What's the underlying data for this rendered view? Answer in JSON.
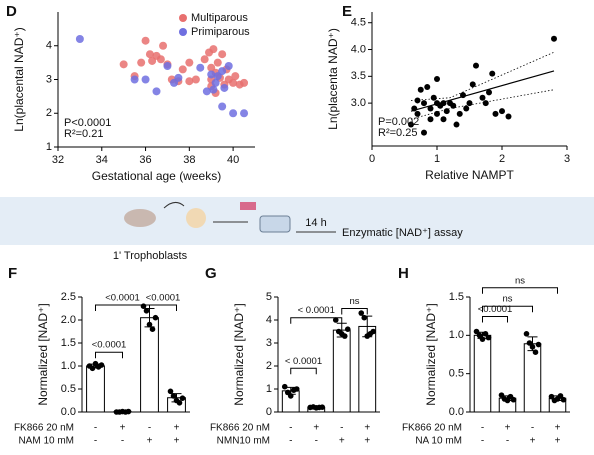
{
  "chart_data": [
    {
      "type": "scatter",
      "panel": "D",
      "x_label": "Gestational age (weeks)",
      "y_label": "Ln(placental NAD⁺)",
      "xlim": [
        32,
        41
      ],
      "xticks": [
        32,
        34,
        36,
        38,
        40
      ],
      "ylim": [
        1,
        5
      ],
      "yticks": [
        1,
        2,
        3,
        4
      ],
      "legend": "top-right",
      "annotations": [
        "P<0.0001",
        "R²=0.21"
      ],
      "series": [
        {
          "name": "Multiparous",
          "color": "#e8706f",
          "x": [
            35,
            35.5,
            35.8,
            36,
            36.2,
            36.3,
            36.5,
            36.7,
            36.8,
            37,
            37.2,
            37.5,
            37.7,
            38,
            38,
            38.3,
            38.7,
            38.9,
            39,
            39,
            39,
            39.1,
            39.2,
            39.2,
            39.3,
            39.4,
            39.5,
            39.6,
            39.7,
            39.8,
            40,
            40.1,
            40.3,
            40.5
          ],
          "values": [
            3.45,
            3.1,
            3.5,
            4.15,
            3.75,
            3.55,
            3.7,
            3.6,
            4.0,
            3.45,
            3.0,
            2.95,
            3.3,
            3.5,
            2.95,
            3.0,
            3.6,
            3.8,
            3.0,
            3.35,
            2.8,
            3.9,
            3.2,
            2.6,
            3.5,
            3.05,
            3.75,
            2.85,
            3.3,
            3.0,
            2.9,
            3.1,
            2.85,
            2.9
          ]
        },
        {
          "name": "Primiparous",
          "color": "#6f6fe0",
          "x": [
            33,
            35.5,
            36,
            36.5,
            37,
            37.3,
            37.5,
            38.5,
            38.8,
            39,
            39.1,
            39.2,
            39.3,
            39.5,
            39.6,
            39.8,
            40,
            40.5,
            39.5
          ],
          "values": [
            4.2,
            3.0,
            3.0,
            2.65,
            3.4,
            2.9,
            3.05,
            3.35,
            2.65,
            3.15,
            2.7,
            2.9,
            3.1,
            3.25,
            2.75,
            3.4,
            2.0,
            2.0,
            2.2
          ]
        }
      ]
    },
    {
      "type": "scatter",
      "panel": "E",
      "x_label": "Relative NAMPT",
      "y_label": "Ln(placenta NAD⁺)",
      "xlim": [
        0,
        3
      ],
      "xticks": [
        0,
        1,
        2,
        3
      ],
      "ylim": [
        2.2,
        4.7
      ],
      "yticks": [
        {
          "value": 3,
          "label": "3.0"
        },
        {
          "value": 3.5,
          "label": "3.5"
        },
        {
          "value": 4,
          "label": "4.0"
        },
        {
          "value": 4.5,
          "label": "4.5"
        }
      ],
      "annotations": [
        "P=0.002",
        "R²=0.25"
      ],
      "series": [
        {
          "color": "#000000",
          "x": [
            0.6,
            0.65,
            0.7,
            0.7,
            0.75,
            0.8,
            0.8,
            0.85,
            0.9,
            0.9,
            0.95,
            1.0,
            1.0,
            1.0,
            1.05,
            1.1,
            1.1,
            1.15,
            1.2,
            1.25,
            1.3,
            1.35,
            1.4,
            1.45,
            1.5,
            1.55,
            1.6,
            1.7,
            1.75,
            1.8,
            1.85,
            1.9,
            2.0,
            2.1,
            2.8
          ],
          "values": [
            2.6,
            2.9,
            2.8,
            3.05,
            3.25,
            3.0,
            2.45,
            3.3,
            2.7,
            2.9,
            3.1,
            3.0,
            2.8,
            3.45,
            2.95,
            3.0,
            2.7,
            2.85,
            3.0,
            2.95,
            2.6,
            2.8,
            3.15,
            2.9,
            3.0,
            3.35,
            3.7,
            3.1,
            3.0,
            3.2,
            3.55,
            2.8,
            2.85,
            2.75,
            4.2
          ]
        }
      ],
      "fit": {
        "x": [
          0.6,
          2.8
        ],
        "y": [
          2.85,
          3.6
        ]
      },
      "ci_upper": {
        "x": [
          0.6,
          1.2,
          2.8
        ],
        "y": [
          3.05,
          3.1,
          3.95
        ]
      },
      "ci_lower": {
        "x": [
          0.6,
          1.2,
          2.8
        ],
        "y": [
          2.7,
          2.9,
          3.25
        ]
      }
    },
    {
      "type": "bar",
      "panel": "F",
      "y_label": "Normalized [NAD⁺]",
      "ylim": [
        0,
        2.5
      ],
      "yticks": [
        {
          "value": 0,
          "label": "0.0"
        },
        {
          "value": 0.5,
          "label": "0.5"
        },
        {
          "value": 1,
          "label": "1.0"
        },
        {
          "value": 1.5,
          "label": "1.5"
        },
        {
          "value": 2,
          "label": "2.0"
        },
        {
          "value": 2.5,
          "label": "2.5"
        }
      ],
      "values": [
        1.0,
        0.004,
        2.05,
        0.31
      ],
      "errors": [
        0.04,
        0.01,
        0.2,
        0.09
      ],
      "points": [
        [
          1.0,
          0.95,
          1.05,
          0.98,
          1.02
        ],
        [
          0,
          0,
          0.01,
          0,
          0.01
        ],
        [
          2.3,
          2.2,
          1.9,
          1.8,
          2.05
        ],
        [
          0.45,
          0.35,
          0.25,
          0.2,
          0.3
        ]
      ],
      "brackets": [
        "<0.0001",
        "<0.0001",
        "<0.0001"
      ],
      "conditions": [
        {
          "name": "FK866 20 nM",
          "signs": [
            "-",
            "+",
            "-",
            "+"
          ]
        },
        {
          "name": "NAM 10 mM",
          "signs": [
            "-",
            "-",
            "+",
            "+"
          ]
        }
      ]
    },
    {
      "type": "bar",
      "panel": "G",
      "y_label": "Normalized [NAD⁺]",
      "ylim": [
        0,
        5
      ],
      "yticks": [
        0,
        1,
        2,
        3,
        4,
        5
      ],
      "values": [
        0.92,
        0.2,
        3.56,
        3.72
      ],
      "errors": [
        0.15,
        0.02,
        0.3,
        0.45
      ],
      "points": [
        [
          1.1,
          0.85,
          0.7,
          0.95,
          1.0
        ],
        [
          0.2,
          0.22,
          0.18,
          0.2,
          0.21
        ],
        [
          4.0,
          3.5,
          3.4,
          3.3,
          3.6
        ],
        [
          4.3,
          4.1,
          3.3,
          3.4,
          3.5
        ]
      ],
      "brackets": [
        "< 0.0001",
        "< 0.0001",
        "ns"
      ],
      "conditions": [
        {
          "name": "FK866 20 nM",
          "signs": [
            "-",
            "+",
            "-",
            "+"
          ]
        },
        {
          "name": "NMN10 mM",
          "signs": [
            "-",
            "-",
            "+",
            "+"
          ]
        }
      ]
    },
    {
      "type": "bar",
      "panel": "H",
      "y_label": "Normalized [NAD⁺]",
      "ylim": [
        0,
        1.5
      ],
      "yticks": [
        {
          "value": 0,
          "label": "0.0"
        },
        {
          "value": 0.5,
          "label": "0.5"
        },
        {
          "value": 1,
          "label": "1.0"
        },
        {
          "value": 1.5,
          "label": "1.5"
        }
      ],
      "values": [
        1.0,
        0.18,
        0.89,
        0.18
      ],
      "errors": [
        0.04,
        0.03,
        0.09,
        0.03
      ],
      "points": [
        [
          1.05,
          1.0,
          0.95,
          1.02,
          0.97
        ],
        [
          0.22,
          0.17,
          0.15,
          0.2,
          0.16
        ],
        [
          1.02,
          0.9,
          0.85,
          0.78,
          0.88
        ],
        [
          0.2,
          0.15,
          0.17,
          0.21,
          0.16
        ]
      ],
      "brackets": [
        "<0.0001",
        "ns",
        "ns"
      ],
      "conditions": [
        {
          "name": "FK866 20 nM",
          "signs": [
            "-",
            "+",
            "-",
            "+"
          ]
        },
        {
          "name": "NA 10 mM",
          "signs": [
            "-",
            "-",
            "+",
            "+"
          ]
        }
      ]
    }
  ],
  "schematic": {
    "cells": "1' Trophoblasts",
    "time": "14 h",
    "assay": "Enzymatic [NAD⁺] assay"
  }
}
